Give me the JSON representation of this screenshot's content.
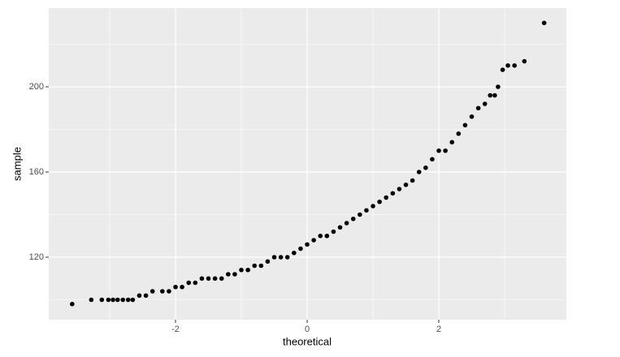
{
  "chart_data": {
    "type": "scatter",
    "x_label": "theoretical",
    "y_label": "sample",
    "x": [
      -3.57,
      -3.28,
      -3.12,
      -3.02,
      -2.95,
      -2.88,
      -2.8,
      -2.72,
      -2.65,
      -2.55,
      -2.45,
      -2.35,
      -2.2,
      -2.1,
      -2.0,
      -1.9,
      -1.8,
      -1.7,
      -1.6,
      -1.5,
      -1.4,
      -1.3,
      -1.2,
      -1.1,
      -1.0,
      -0.9,
      -0.8,
      -0.7,
      -0.6,
      -0.5,
      -0.4,
      -0.3,
      -0.2,
      -0.1,
      0.0,
      0.1,
      0.2,
      0.3,
      0.4,
      0.5,
      0.6,
      0.7,
      0.8,
      0.9,
      1.0,
      1.1,
      1.2,
      1.3,
      1.4,
      1.5,
      1.6,
      1.7,
      1.8,
      1.9,
      2.0,
      2.1,
      2.2,
      2.3,
      2.4,
      2.5,
      2.6,
      2.7,
      2.78,
      2.85,
      2.9,
      2.97,
      3.05,
      3.15,
      3.3,
      3.6
    ],
    "values": [
      98,
      100,
      100,
      100,
      100,
      100,
      100,
      100,
      100,
      102,
      102,
      104,
      104,
      104,
      106,
      106,
      108,
      108,
      110,
      110,
      110,
      110,
      112,
      112,
      114,
      114,
      116,
      116,
      118,
      120,
      120,
      120,
      122,
      124,
      126,
      128,
      130,
      130,
      132,
      134,
      136,
      138,
      140,
      142,
      144,
      146,
      148,
      150,
      152,
      154,
      156,
      160,
      162,
      166,
      170,
      170,
      174,
      178,
      182,
      186,
      190,
      192,
      196,
      196,
      200,
      208,
      210,
      210,
      212,
      230
    ],
    "color": "#000000",
    "xlim": [
      -3.926,
      3.938
    ],
    "ylim": [
      90.67,
      236.95
    ],
    "xticks": [
      -2,
      0,
      2
    ],
    "yticks": [
      120,
      160,
      200
    ],
    "minor_xticks": [
      -3,
      -1,
      1,
      3
    ],
    "minor_yticks": [
      100,
      140,
      180,
      220
    ],
    "grid": true,
    "background": "#ebebeb"
  }
}
